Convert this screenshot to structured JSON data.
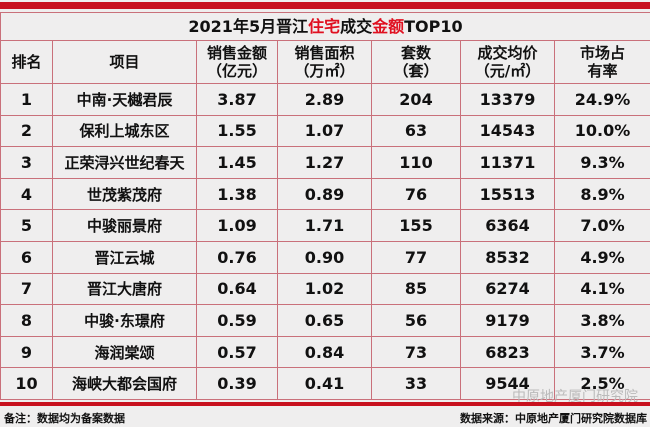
{
  "chart_data": {
    "type": "table",
    "title_parts": [
      "2021年5月晋江",
      "住宅",
      "成交",
      "金额",
      "TOP10"
    ],
    "columns": [
      {
        "line1": "排名",
        "line2": ""
      },
      {
        "line1": "项目",
        "line2": ""
      },
      {
        "line1": "销售金额",
        "line2": "（亿元）"
      },
      {
        "line1": "销售面积",
        "line2": "（万㎡）"
      },
      {
        "line1": "套数",
        "line2": "（套）"
      },
      {
        "line1": "成交均价",
        "line2": "（元/㎡）"
      },
      {
        "line1": "市场占",
        "line2": "有率"
      }
    ],
    "rows": [
      [
        "1",
        "中南·天樾君辰",
        "3.87",
        "2.89",
        "204",
        "13379",
        "24.9%"
      ],
      [
        "2",
        "保利上城东区",
        "1.55",
        "1.07",
        "63",
        "14543",
        "10.0%"
      ],
      [
        "3",
        "正荣浔兴世纪春天",
        "1.45",
        "1.27",
        "110",
        "11371",
        "9.3%"
      ],
      [
        "4",
        "世茂紫茂府",
        "1.38",
        "0.89",
        "76",
        "15513",
        "8.9%"
      ],
      [
        "5",
        "中骏丽景府",
        "1.09",
        "1.71",
        "155",
        "6364",
        "7.0%"
      ],
      [
        "6",
        "晋江云城",
        "0.76",
        "0.90",
        "77",
        "8532",
        "4.9%"
      ],
      [
        "7",
        "晋江大唐府",
        "0.64",
        "1.02",
        "85",
        "6274",
        "4.1%"
      ],
      [
        "8",
        "中骏·东璟府",
        "0.59",
        "0.65",
        "56",
        "9179",
        "3.8%"
      ],
      [
        "9",
        "海润棠颂",
        "0.57",
        "0.84",
        "73",
        "6823",
        "3.7%"
      ],
      [
        "10",
        "海峡大都会国府",
        "0.39",
        "0.41",
        "33",
        "9544",
        "2.5%"
      ]
    ]
  },
  "footer": {
    "note": "备注：数据均为备案数据",
    "source": "数据来源：中原地产厦门研究院数据库",
    "watermark": "中原地产厦门研究院"
  },
  "colors": {
    "accent": "#c8101e",
    "highlight": "#e01020"
  }
}
